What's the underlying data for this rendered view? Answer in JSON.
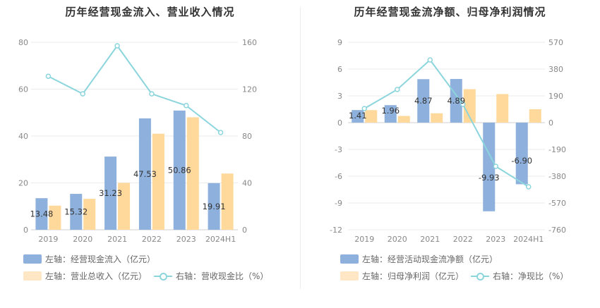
{
  "colors": {
    "left_bar": "#8eb0dc",
    "right_bar": "#ffd99b",
    "line": "#8cd5dd",
    "grid": "#ebebeb",
    "axis_text": "#888888",
    "label_text": "#333333"
  },
  "chart_data": [
    {
      "type": "bar",
      "title": "历年经营现金流入、营业收入情况",
      "categories": [
        "2019",
        "2020",
        "2021",
        "2022",
        "2023",
        "2024H1"
      ],
      "left_axis": {
        "min": 0,
        "max": 80,
        "ticks": [
          "0",
          "20",
          "40",
          "60",
          "80"
        ]
      },
      "right_axis": {
        "min": 0,
        "max": 160,
        "ticks": [
          "0",
          "40",
          "80",
          "120",
          "160"
        ]
      },
      "series": [
        {
          "name": "左轴：经营现金流入（亿元）",
          "kind": "bar",
          "axis": "left",
          "values": [
            13.48,
            15.32,
            31.23,
            47.53,
            50.86,
            19.91
          ],
          "labels": [
            "13.48",
            "15.32",
            "31.23",
            "47.53",
            "50.86",
            "19.91"
          ]
        },
        {
          "name": "左轴：营业总收入（亿元）",
          "kind": "bar",
          "axis": "left",
          "values": [
            10.3,
            13.2,
            20.0,
            41.0,
            48.0,
            24.0
          ]
        },
        {
          "name": "右轴：营收现金比（%）",
          "kind": "line",
          "axis": "right",
          "values": [
            131,
            116,
            157,
            116,
            106,
            83
          ]
        }
      ]
    },
    {
      "type": "bar",
      "title": "历年经营现金流净额、归母净利润情况",
      "categories": [
        "2019",
        "2020",
        "2021",
        "2022",
        "2023",
        "2024H1"
      ],
      "left_axis": {
        "min": -12,
        "max": 9,
        "ticks": [
          "-12",
          "-9",
          "-6",
          "-3",
          "0",
          "3",
          "6",
          "9"
        ]
      },
      "right_axis": {
        "min": -760,
        "max": 570,
        "ticks": [
          "-760",
          "-570",
          "-380",
          "-190",
          "0",
          "190",
          "380",
          "570"
        ]
      },
      "series": [
        {
          "name": "左轴：经营活动现金流净额（亿元）",
          "kind": "bar",
          "axis": "left",
          "values": [
            1.41,
            1.96,
            4.87,
            4.89,
            -9.93,
            -6.9
          ],
          "labels": [
            "1.41",
            "1.96",
            "4.87",
            "4.89",
            "-9.93",
            "-6.90"
          ]
        },
        {
          "name": "左轴：归母净利润（亿元）",
          "kind": "bar",
          "axis": "left",
          "values": [
            1.4,
            0.75,
            1.05,
            3.75,
            3.2,
            1.5
          ]
        },
        {
          "name": "右轴：净现比（%）",
          "kind": "line",
          "axis": "right",
          "values": [
            100,
            235,
            445,
            130,
            -310,
            -455
          ]
        }
      ]
    }
  ]
}
